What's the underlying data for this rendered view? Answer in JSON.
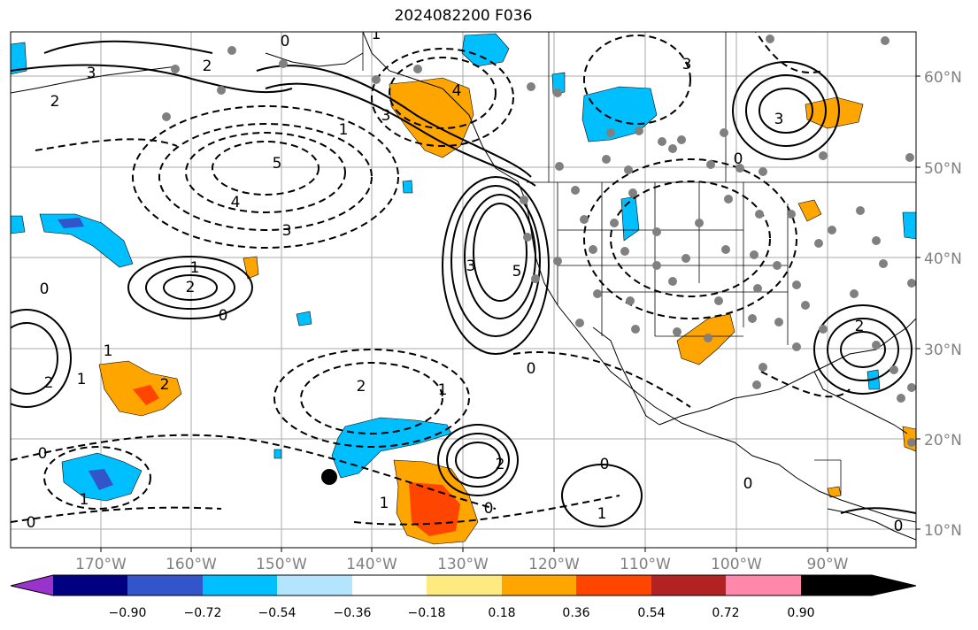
{
  "title": "2024082200 F036",
  "lat_labels": [
    "60°N",
    "50°N",
    "40°N",
    "30°N",
    "20°N",
    "10°N"
  ],
  "lon_labels": [
    "170°W",
    "160°W",
    "150°W",
    "140°W",
    "130°W",
    "120°W",
    "110°W",
    "100°W",
    "90°W"
  ],
  "colorbar": {
    "tick_labels": [
      "−0.90",
      "−0.72",
      "−0.54",
      "−0.36",
      "−0.18",
      "0.18",
      "0.36",
      "0.54",
      "0.72",
      "0.90"
    ],
    "colors": [
      "#9933cc",
      "#000080",
      "#3355cc",
      "#00bfff",
      "#b3e5ff",
      "#ffffff",
      "#ffea80",
      "#ffa500",
      "#ff4500",
      "#b22222",
      "#ff88aa"
    ]
  },
  "contour_labels": [
    "3",
    "2",
    "0",
    "1",
    "3",
    "5",
    "4",
    "3",
    "2",
    "2",
    "1",
    "0",
    "0",
    "1",
    "2",
    "2",
    "1",
    "0",
    "2",
    "1",
    "0",
    "1",
    "0",
    "1",
    "0",
    "3",
    "5",
    "4",
    "3",
    "2",
    "0",
    "0",
    "1",
    "2",
    "3",
    "0",
    "1",
    "0"
  ],
  "colors": {
    "land": "#ffffff",
    "grid": "#aaaaaa",
    "station_dot": "#808080",
    "marker_dot": "#000000"
  }
}
